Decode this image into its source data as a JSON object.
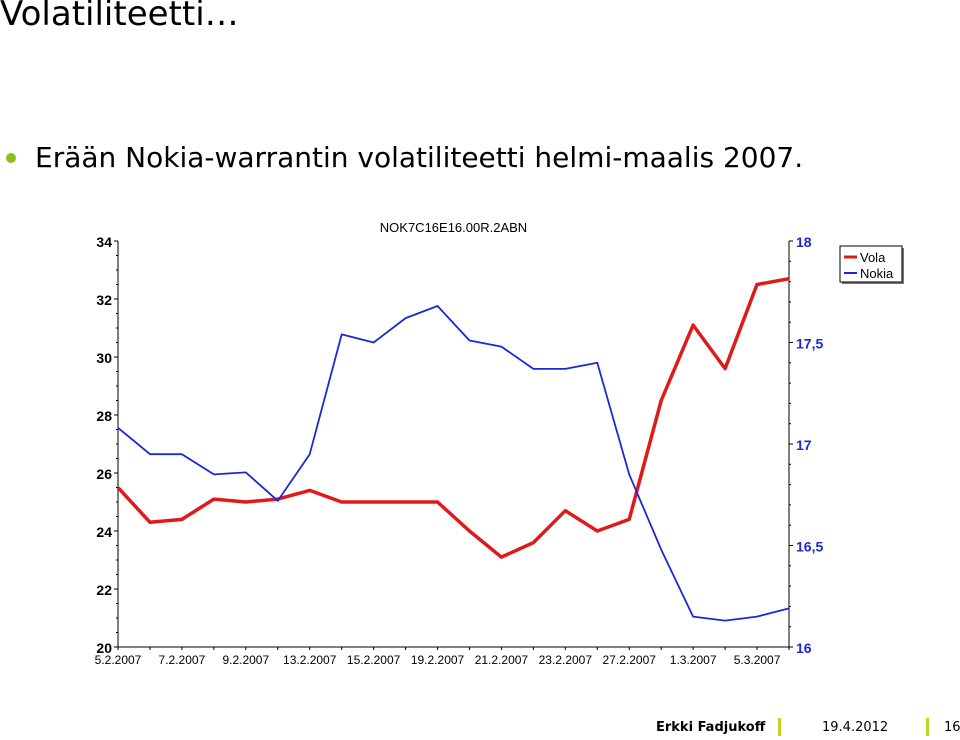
{
  "slide": {
    "title": "Volatiliteetti…",
    "bullet": "Erään Nokia-warrantin volatiliteetti helmi-maalis 2007."
  },
  "footer": {
    "author": "Erkki Fadjukoff",
    "date": "19.4.2012",
    "page": "16"
  },
  "colors": {
    "bullet": "#8cbe23",
    "footer_separator": "#c2d61f",
    "vola": "#e01a1a",
    "nokia": "#1a28d8",
    "right_axis_text": "#1a28d8"
  },
  "chart_data": {
    "type": "line",
    "title": "NOK7C16E16.00R.2ABN",
    "x_tick_labels": [
      "5.2.2007",
      "7.2.2007",
      "9.2.2007",
      "13.2.2007",
      "15.2.2007",
      "19.2.2007",
      "21.2.2007",
      "23.2.2007",
      "27.2.2007",
      "1.3.2007",
      "5.3.2007"
    ],
    "y_left": {
      "ylim": [
        20,
        34
      ],
      "ticks": [
        20,
        22,
        24,
        26,
        28,
        30,
        32,
        34
      ]
    },
    "y_right": {
      "ylim": [
        16,
        18
      ],
      "ticks": [
        "16",
        "16,5",
        "17",
        "17,5",
        "18"
      ]
    },
    "legend_position": "top-right",
    "series": [
      {
        "name": "Vola",
        "axis": "left",
        "values": [
          25.5,
          24.3,
          24.4,
          25.1,
          25.0,
          25.1,
          25.4,
          25.0,
          25.0,
          25.0,
          25.0,
          24.0,
          23.1,
          23.6,
          24.7,
          24.0,
          24.4,
          28.5,
          31.1,
          29.6,
          32.5,
          32.7
        ]
      },
      {
        "name": "Nokia",
        "axis": "right",
        "values": [
          17.08,
          16.95,
          16.95,
          16.85,
          16.86,
          16.72,
          16.95,
          17.54,
          17.5,
          17.62,
          17.68,
          17.51,
          17.48,
          17.37,
          17.37,
          17.4,
          16.85,
          16.48,
          16.15,
          16.13,
          16.15,
          16.19
        ]
      }
    ]
  }
}
